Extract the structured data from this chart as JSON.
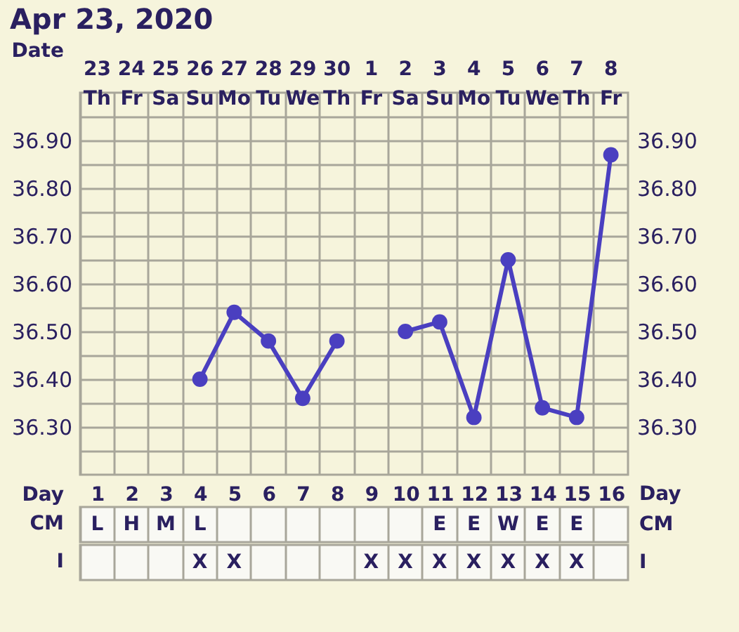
{
  "chart_data": [
    {
      "type": "line",
      "title": "Apr 23, 2020",
      "xlabel": "Date",
      "x2label": "Day",
      "categories": [
        "23\nTh",
        "24\nFr",
        "25\nSa",
        "26\nSu",
        "27\nMo",
        "28\nTu",
        "29\nWe",
        "30\nTh",
        "1\nFr",
        "2\nSa",
        "3\nSu",
        "4\nMo",
        "5\nTu",
        "6\nWe",
        "7\nTh",
        "8\nFr"
      ],
      "series": [
        {
          "color": "#4a3fc0",
          "values": [
            null,
            null,
            null,
            36.4,
            36.54,
            36.48,
            36.36,
            36.48,
            null,
            36.5,
            36.52,
            36.32,
            36.65,
            36.34,
            36.32,
            36.87
          ]
        }
      ],
      "ylim": [
        36.2,
        37.0
      ],
      "yticks": [
        {
          "value": 36.25,
          "label": null
        },
        {
          "value": 36.3,
          "label": "36.30"
        },
        {
          "value": 36.35,
          "label": null
        },
        {
          "value": 36.4,
          "label": "36.40"
        },
        {
          "value": 36.45,
          "label": null
        },
        {
          "value": 36.5,
          "label": "36.50"
        },
        {
          "value": 36.55,
          "label": null
        },
        {
          "value": 36.6,
          "label": "36.60"
        },
        {
          "value": 36.65,
          "label": null
        },
        {
          "value": 36.7,
          "label": "36.70"
        },
        {
          "value": 36.75,
          "label": null
        },
        {
          "value": 36.8,
          "label": "36.80"
        },
        {
          "value": 36.85,
          "label": null
        },
        {
          "value": 36.9,
          "label": "36.90"
        },
        {
          "value": 36.95,
          "label": null
        }
      ],
      "y2lim": [
        36.2,
        37.0
      ],
      "y2ticks": [
        {
          "value": 36.3,
          "label": "36.30"
        },
        {
          "value": 36.4,
          "label": "36.40"
        },
        {
          "value": 36.5,
          "label": "36.50"
        },
        {
          "value": 36.6,
          "label": "36.60"
        },
        {
          "value": 36.7,
          "label": "36.70"
        },
        {
          "value": 36.8,
          "label": "36.80"
        },
        {
          "value": 36.9,
          "label": "36.90"
        }
      ],
      "x2lim": [
        0.5,
        16.5
      ],
      "x2ticks": [
        1,
        2,
        3,
        4,
        5,
        6,
        7,
        8,
        9,
        10,
        11,
        12,
        13,
        14,
        15,
        16
      ],
      "grid": true,
      "marker": "circle",
      "line_style": "solid"
    },
    {
      "type": "other",
      "xlabel": "CM",
      "categories": [
        "L",
        "H",
        "M",
        "L",
        null,
        null,
        null,
        null,
        null,
        null,
        "E",
        "E",
        "W",
        "E",
        "E",
        null
      ]
    },
    {
      "type": "other",
      "xlabel": "I",
      "categories": [
        null,
        null,
        null,
        "X",
        "X",
        null,
        null,
        null,
        "X",
        "X",
        "X",
        "X",
        "X",
        "X",
        "X",
        null
      ]
    }
  ]
}
